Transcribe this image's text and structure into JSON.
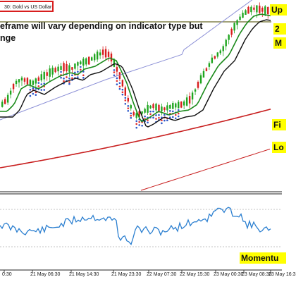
{
  "chart": {
    "symbol_label": "30: Gold vs US Dollar",
    "note_line1": "eframe will vary depending on indicator type but",
    "note_line2": "nge",
    "right_labels": {
      "up": "Up",
      "two": "2",
      "m": "M",
      "fi": "Fi",
      "lo": "Lo",
      "momentum": "Momentu"
    },
    "x_ticks": [
      "0:30",
      "21 May 06:30",
      "21 May 14:30",
      "21 May 23:30",
      "22 May 07:30",
      "22 May 15:30",
      "23 May 00:30",
      "23 May 08:30",
      "23 May 16:3"
    ],
    "colors": {
      "bull": "#1fa51f",
      "bear": "#d81e1e",
      "fast_ma": "#1a8a1a",
      "mid_ma": "#111111",
      "slow_ma": "#8b8fd6",
      "long_ma": "#c81e1e",
      "momentum": "#2b7fd0",
      "dots_red": "#e03030",
      "dots_blue": "#2a55c8"
    }
  }
}
